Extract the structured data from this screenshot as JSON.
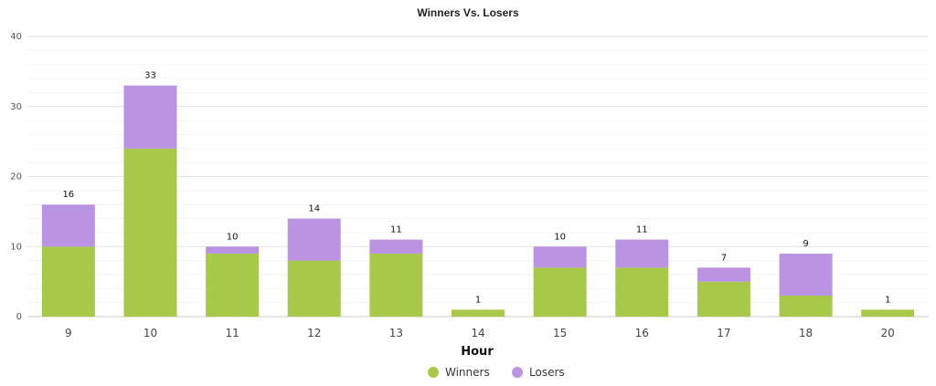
{
  "chart_data": {
    "type": "bar",
    "stacked": true,
    "title": "Winners Vs. Losers",
    "xlabel": "Hour",
    "ylabel": "",
    "ylim": [
      0,
      40
    ],
    "yticks": [
      0,
      10,
      20,
      30,
      40
    ],
    "grid": true,
    "legend_position": "bottom-center",
    "categories": [
      "9",
      "10",
      "11",
      "12",
      "13",
      "14",
      "15",
      "16",
      "17",
      "18",
      "20"
    ],
    "series": [
      {
        "name": "Winners",
        "color": "#a8c84a",
        "values": [
          10,
          24,
          9,
          8,
          9,
          1,
          7,
          7,
          5,
          3,
          1
        ]
      },
      {
        "name": "Losers",
        "color": "#bb93e3",
        "values": [
          6,
          9,
          1,
          6,
          2,
          0,
          3,
          4,
          2,
          6,
          0
        ]
      }
    ],
    "totals": [
      "16",
      "33",
      "10",
      "14",
      "11",
      "1",
      "10",
      "11",
      "7",
      "9",
      "1"
    ]
  }
}
